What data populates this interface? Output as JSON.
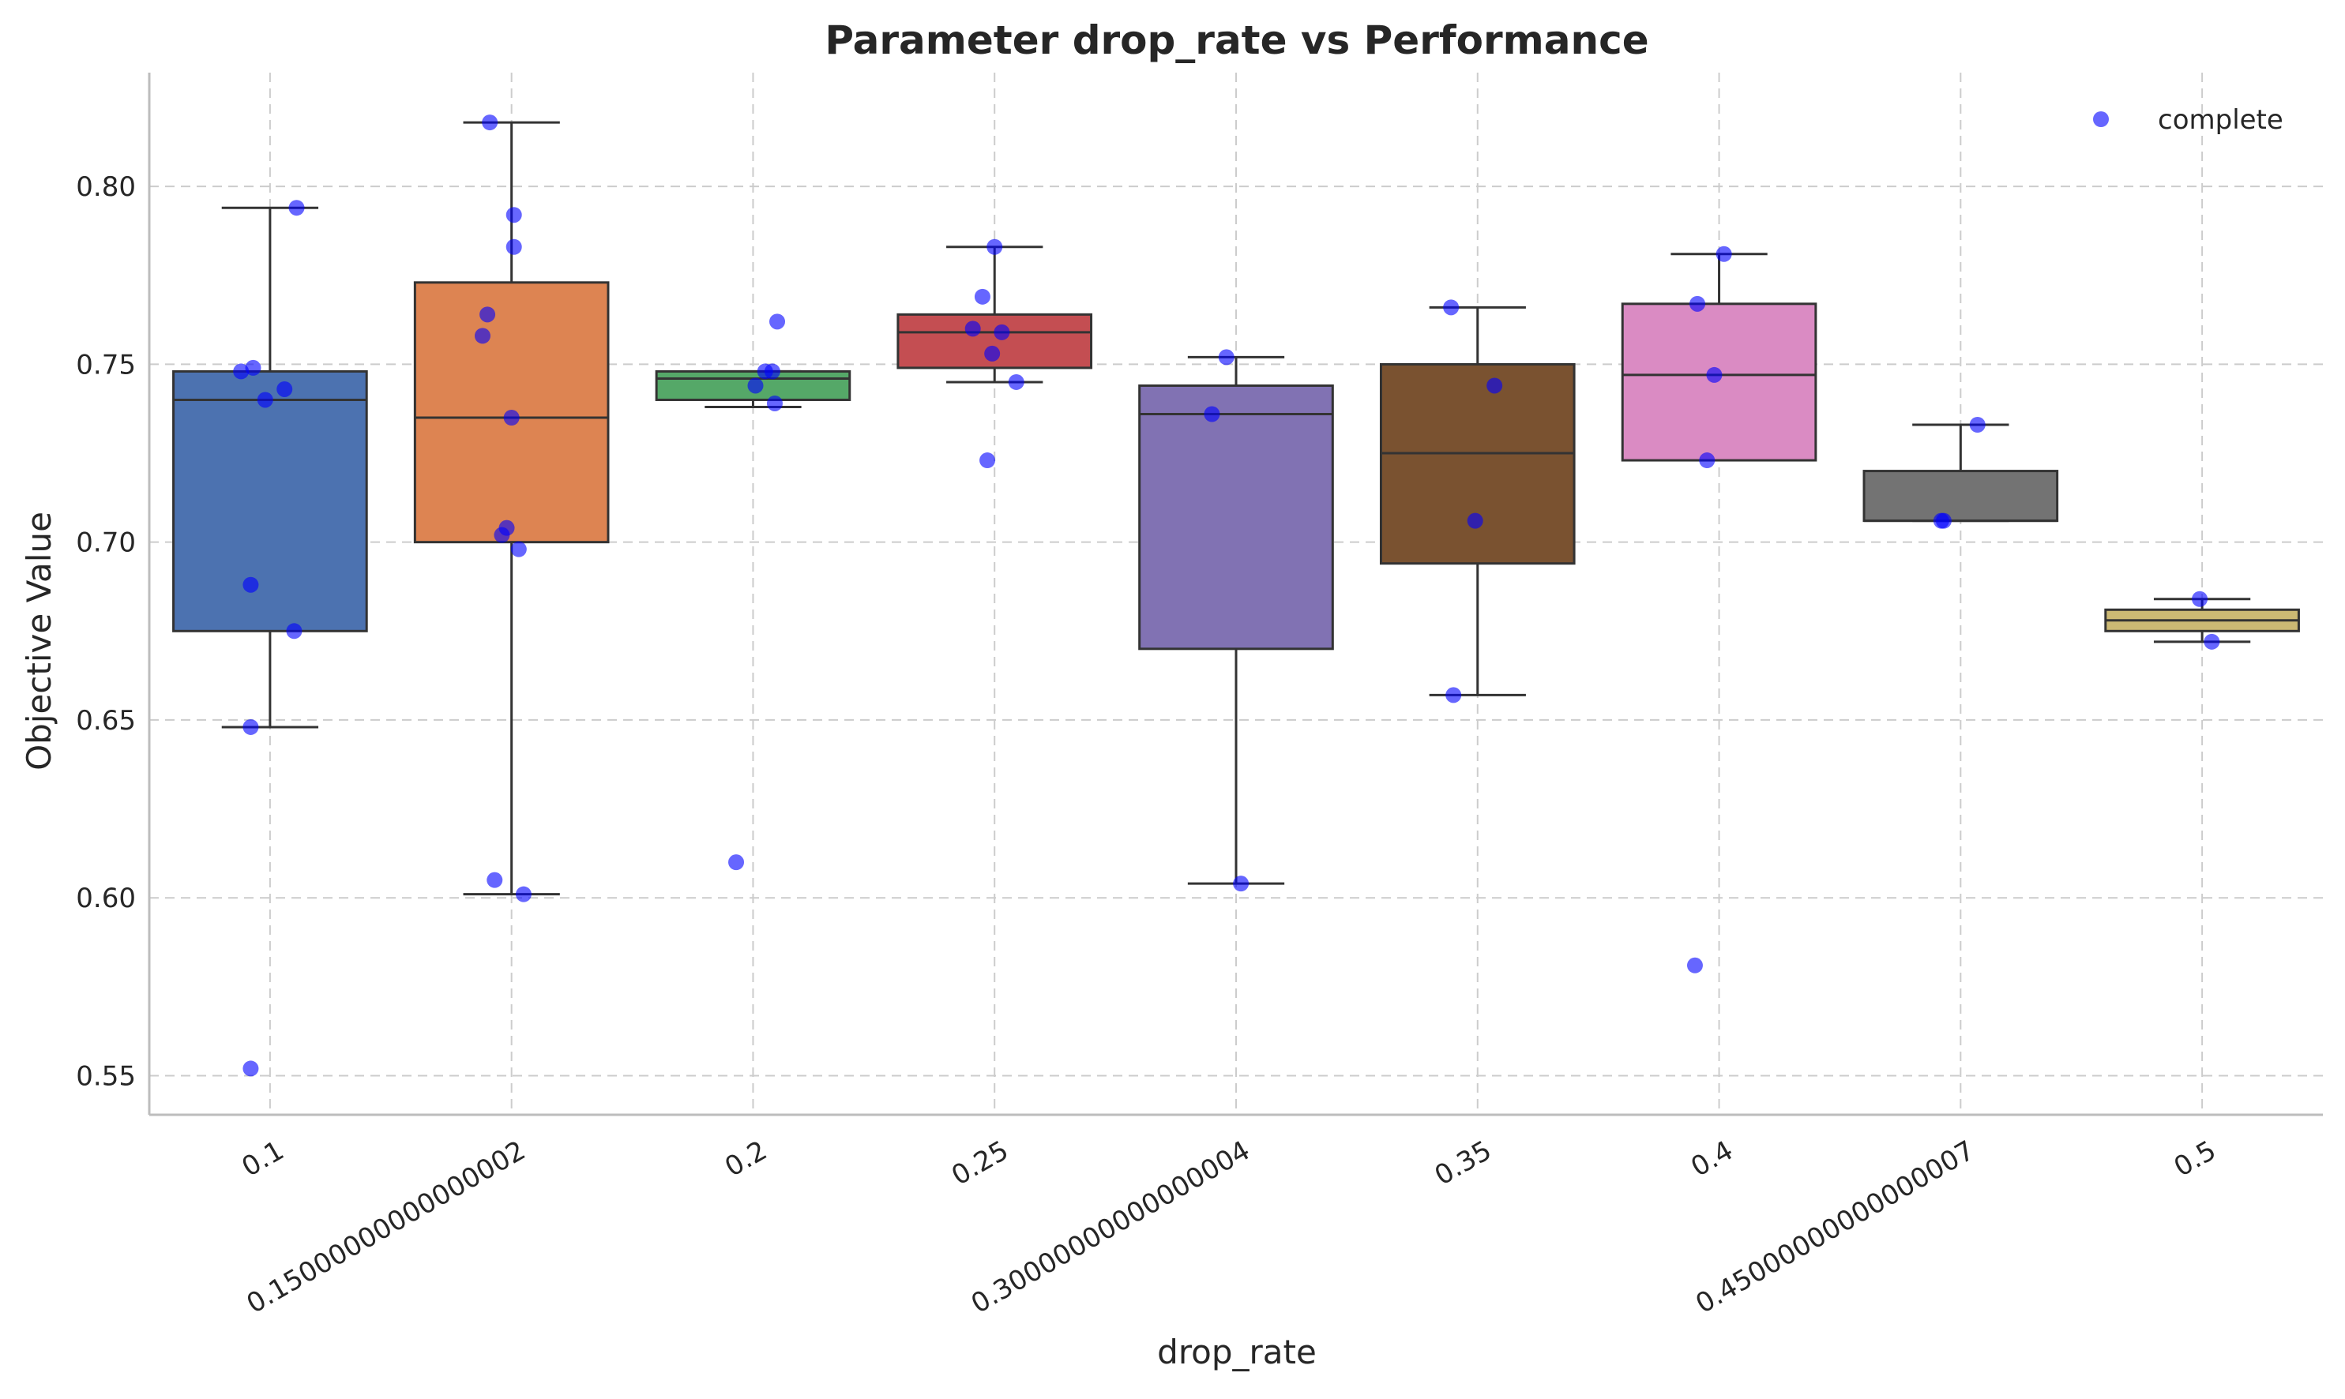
{
  "chart_data": {
    "type": "box",
    "title": "Parameter drop_rate vs Performance",
    "xlabel": "drop_rate",
    "ylabel": "Objective Value",
    "categories": [
      "0.1",
      "0.15000000000000002",
      "0.2",
      "0.25",
      "0.30000000000000004",
      "0.35",
      "0.4",
      "0.45000000000000007",
      "0.5"
    ],
    "ylim": [
      0.539,
      0.832
    ],
    "yticks": [
      "0.55",
      "0.60",
      "0.65",
      "0.70",
      "0.75",
      "0.80"
    ],
    "grid": true,
    "legend": {
      "position": "top-right",
      "entries": [
        {
          "label": "complete",
          "color": "#0000ff"
        }
      ]
    },
    "boxes": [
      {
        "category": "0.1",
        "color": "#4c72b0",
        "whisker_low": 0.648,
        "q1": 0.675,
        "median": 0.74,
        "q3": 0.748,
        "whisker_high": 0.794
      },
      {
        "category": "0.15000000000000002",
        "color": "#dd8452",
        "whisker_low": 0.601,
        "q1": 0.7,
        "median": 0.735,
        "q3": 0.773,
        "whisker_high": 0.818
      },
      {
        "category": "0.2",
        "color": "#55a868",
        "whisker_low": 0.738,
        "q1": 0.74,
        "median": 0.746,
        "q3": 0.748,
        "whisker_high": 0.748
      },
      {
        "category": "0.25",
        "color": "#c44e52",
        "whisker_low": 0.745,
        "q1": 0.749,
        "median": 0.759,
        "q3": 0.764,
        "whisker_high": 0.783
      },
      {
        "category": "0.30000000000000004",
        "color": "#8172b3",
        "whisker_low": 0.604,
        "q1": 0.67,
        "median": 0.736,
        "q3": 0.744,
        "whisker_high": 0.752
      },
      {
        "category": "0.35",
        "color": "#7a5230",
        "whisker_low": 0.657,
        "q1": 0.694,
        "median": 0.725,
        "q3": 0.75,
        "whisker_high": 0.766
      },
      {
        "category": "0.4",
        "color": "#da8bc3",
        "whisker_low": 0.723,
        "q1": 0.723,
        "median": 0.747,
        "q3": 0.767,
        "whisker_high": 0.781
      },
      {
        "category": "0.45000000000000007",
        "color": "#737373",
        "whisker_low": 0.706,
        "q1": 0.706,
        "median": 0.706,
        "q3": 0.72,
        "whisker_high": 0.733
      },
      {
        "category": "0.5",
        "color": "#ccb974",
        "whisker_low": 0.672,
        "q1": 0.675,
        "median": 0.678,
        "q3": 0.681,
        "whisker_high": 0.684
      }
    ],
    "points": [
      {
        "category": "0.1",
        "values": [
          0.552,
          0.648,
          0.675,
          0.688,
          0.74,
          0.743,
          0.748,
          0.749,
          0.794
        ],
        "jitter": [
          -0.08,
          -0.08,
          0.1,
          -0.08,
          -0.02,
          0.06,
          -0.12,
          -0.07,
          0.11
        ]
      },
      {
        "category": "0.15000000000000002",
        "values": [
          0.601,
          0.605,
          0.698,
          0.702,
          0.704,
          0.735,
          0.758,
          0.764,
          0.783,
          0.792,
          0.818
        ],
        "jitter": [
          0.05,
          -0.07,
          0.03,
          -0.04,
          -0.02,
          0.0,
          -0.12,
          -0.1,
          0.01,
          0.01,
          -0.09
        ]
      },
      {
        "category": "0.2",
        "values": [
          0.61,
          0.739,
          0.744,
          0.748,
          0.748,
          0.762
        ],
        "jitter": [
          -0.07,
          0.09,
          0.01,
          0.05,
          0.08,
          0.1
        ]
      },
      {
        "category": "0.25",
        "values": [
          0.723,
          0.745,
          0.753,
          0.759,
          0.76,
          0.769,
          0.783
        ],
        "jitter": [
          -0.03,
          0.09,
          -0.01,
          0.03,
          -0.09,
          -0.05,
          0.0
        ]
      },
      {
        "category": "0.30000000000000004",
        "values": [
          0.604,
          0.736,
          0.752
        ],
        "jitter": [
          0.02,
          -0.1,
          -0.04
        ]
      },
      {
        "category": "0.35",
        "values": [
          0.657,
          0.706,
          0.744,
          0.766
        ],
        "jitter": [
          -0.1,
          -0.01,
          0.07,
          -0.11
        ]
      },
      {
        "category": "0.4",
        "values": [
          0.581,
          0.723,
          0.747,
          0.767,
          0.781
        ],
        "jitter": [
          -0.1,
          -0.05,
          -0.02,
          -0.09,
          0.02
        ]
      },
      {
        "category": "0.45000000000000007",
        "values": [
          0.706,
          0.706,
          0.733
        ],
        "jitter": [
          -0.08,
          -0.07,
          0.07
        ]
      },
      {
        "category": "0.5",
        "values": [
          0.672,
          0.684
        ],
        "jitter": [
          0.04,
          -0.01
        ]
      }
    ]
  }
}
